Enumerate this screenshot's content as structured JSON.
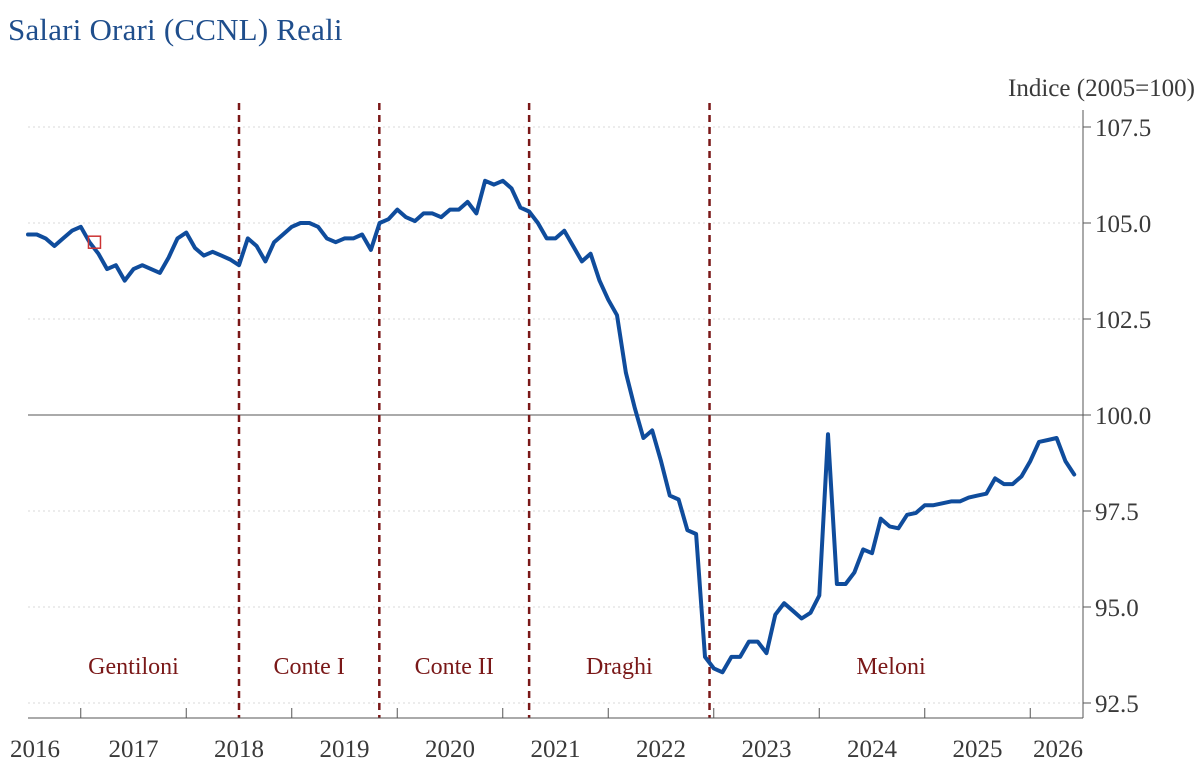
{
  "chart_data": {
    "type": "line",
    "title": "Salari Orari (CCNL) Reali",
    "unit_label": "Indice (2005=100)",
    "colors": {
      "series": "#0f4c9c",
      "title": "#1f4e8c",
      "government_lines": "#7a1818",
      "baseline": "#777777",
      "grid": "#d9d9d9",
      "marker": "#cc3333"
    },
    "ylim": [
      92.5,
      107.5
    ],
    "yticks": [
      "92.5",
      "95.0",
      "97.5",
      "100.0",
      "102.5",
      "105.0",
      "107.5"
    ],
    "xlim": [
      2016,
      2026
    ],
    "xticks": [
      "2016",
      "2017",
      "2018",
      "2019",
      "2020",
      "2021",
      "2022",
      "2023",
      "2024",
      "2025",
      "2026"
    ],
    "grid": "horizontal dotted",
    "baseline_value": 100,
    "highlight_point": {
      "x": 2016.63,
      "y": 104.5
    },
    "governments": [
      {
        "name": "Gentiloni",
        "start": 2016.0,
        "end": 2018.0
      },
      {
        "name": "Conte I",
        "start": 2018.0,
        "end": 2019.33
      },
      {
        "name": "Conte II",
        "start": 2019.33,
        "end": 2020.75
      },
      {
        "name": "Draghi",
        "start": 2020.75,
        "end": 2022.46
      },
      {
        "name": "Meloni",
        "start": 2022.46,
        "end": 2025.9
      }
    ],
    "series": [
      {
        "x": [
          2016.0,
          2016.083,
          2016.167,
          2016.25,
          2016.333,
          2016.417,
          2016.5,
          2016.583,
          2016.667,
          2016.75,
          2016.833,
          2016.917,
          2017.0,
          2017.083,
          2017.167,
          2017.25,
          2017.333,
          2017.417,
          2017.5,
          2017.583,
          2017.667,
          2017.75,
          2017.833,
          2017.917,
          2018.0,
          2018.083,
          2018.167,
          2018.25,
          2018.333,
          2018.417,
          2018.5,
          2018.583,
          2018.667,
          2018.75,
          2018.833,
          2018.917,
          2019.0,
          2019.083,
          2019.167,
          2019.25,
          2019.333,
          2019.417,
          2019.5,
          2019.583,
          2019.667,
          2019.75,
          2019.833,
          2019.917,
          2020.0,
          2020.083,
          2020.167,
          2020.25,
          2020.333,
          2020.417,
          2020.5,
          2020.583,
          2020.667,
          2020.75,
          2020.833,
          2020.917,
          2021.0,
          2021.083,
          2021.167,
          2021.25,
          2021.333,
          2021.417,
          2021.5,
          2021.583,
          2021.667,
          2021.75,
          2021.833,
          2021.917,
          2022.0,
          2022.083,
          2022.167,
          2022.25,
          2022.333,
          2022.417,
          2022.5,
          2022.583,
          2022.667,
          2022.75,
          2022.833,
          2022.917,
          2023.0,
          2023.083,
          2023.167,
          2023.25,
          2023.333,
          2023.417,
          2023.5,
          2023.583,
          2023.667,
          2023.75,
          2023.833,
          2023.917,
          2024.0,
          2024.083,
          2024.167,
          2024.25,
          2024.333,
          2024.417,
          2024.5,
          2024.583,
          2024.667,
          2024.75,
          2024.833,
          2024.917,
          2025.0,
          2025.083,
          2025.167,
          2025.25,
          2025.333,
          2025.417,
          2025.5,
          2025.583,
          2025.667,
          2025.75,
          2025.833,
          2025.917
        ],
        "values": [
          104.7,
          104.7,
          104.6,
          104.4,
          104.6,
          104.8,
          104.9,
          104.5,
          104.2,
          103.8,
          103.9,
          103.5,
          103.8,
          103.9,
          103.8,
          103.7,
          104.1,
          104.6,
          104.75,
          104.35,
          104.15,
          104.25,
          104.15,
          104.05,
          103.9,
          104.6,
          104.4,
          104.0,
          104.5,
          104.7,
          104.9,
          105.0,
          105.0,
          104.9,
          104.6,
          104.5,
          104.6,
          104.6,
          104.7,
          104.3,
          105.0,
          105.1,
          105.35,
          105.15,
          105.05,
          105.25,
          105.25,
          105.15,
          105.35,
          105.35,
          105.55,
          105.25,
          106.1,
          106.0,
          106.1,
          105.9,
          105.4,
          105.3,
          105.0,
          104.6,
          104.6,
          104.8,
          104.4,
          104.0,
          104.2,
          103.5,
          103.0,
          102.6,
          101.1,
          100.2,
          99.4,
          99.6,
          98.8,
          97.9,
          97.8,
          97.0,
          96.9,
          93.7,
          93.4,
          93.3,
          93.7,
          93.7,
          94.1,
          94.1,
          93.8,
          94.8,
          95.1,
          94.9,
          94.7,
          94.85,
          95.3,
          99.5,
          95.6,
          95.6,
          95.9,
          96.5,
          96.4,
          97.3,
          97.1,
          97.05,
          97.4,
          97.45,
          97.65,
          97.65,
          97.7,
          97.75,
          97.75,
          97.85,
          97.9,
          97.95,
          98.35,
          98.2,
          98.2,
          98.4,
          98.8,
          99.3,
          99.35,
          99.4,
          98.8,
          98.45
        ]
      }
    ]
  }
}
